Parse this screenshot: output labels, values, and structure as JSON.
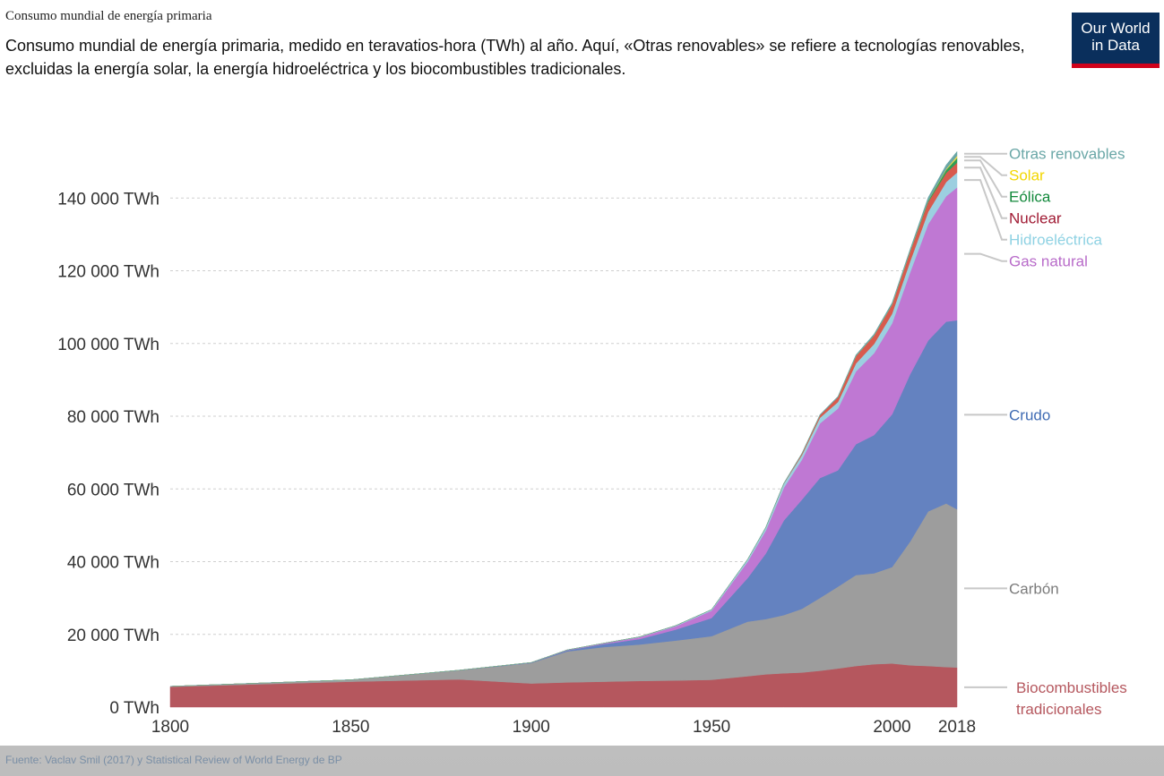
{
  "header": {
    "title": "Consumo mundial de energía primaria",
    "subtitle": "Consumo mundial de energía primaria, medido en teravatios-hora (TWh) al año. Aquí, «Otras renovables» se refiere a tecnologías renovables, excluidas la energía solar, la energía hidroeléctrica y los biocombustibles tradicionales."
  },
  "logo": {
    "line1": "Our World",
    "line2": "in Data"
  },
  "source": "Fuente: Vaclav Smil (2017) y Statistical Review of World Energy de BP",
  "chart_data": {
    "type": "area",
    "stacked": true,
    "x": [
      1800,
      1850,
      1880,
      1900,
      1910,
      1920,
      1930,
      1940,
      1950,
      1960,
      1965,
      1970,
      1975,
      1980,
      1985,
      1990,
      1995,
      2000,
      2005,
      2010,
      2015,
      2018
    ],
    "x_ticks": [
      1800,
      1850,
      1900,
      1950,
      2000,
      2018
    ],
    "xlim": [
      1800,
      2018
    ],
    "ylim": [
      0,
      160000
    ],
    "y_ticks": [
      0,
      20000,
      40000,
      60000,
      80000,
      100000,
      120000,
      140000
    ],
    "y_tick_labels": [
      "0 TWh",
      "20 000 TWh",
      "40 000 TWh",
      "60 000 TWh",
      "80 000 TWh",
      "100 000 TWh",
      "120 000 TWh",
      "140 000 TWh"
    ],
    "grid": true,
    "series": [
      {
        "name": "Biocombustibles tradicionales",
        "color": "#b5575e",
        "values": [
          5600,
          7000,
          7600,
          6500,
          6800,
          7000,
          7200,
          7300,
          7500,
          8500,
          9000,
          9300,
          9500,
          10000,
          10600,
          11300,
          11800,
          12000,
          11500,
          11300,
          11000,
          10900
        ]
      },
      {
        "name": "Carbón",
        "color": "#9d9d9d",
        "values": [
          100,
          500,
          2500,
          5600,
          8500,
          9500,
          10000,
          11000,
          12000,
          15000,
          15200,
          16000,
          17500,
          20000,
          22500,
          25000,
          25000,
          26500,
          34000,
          42500,
          45000,
          43500
        ]
      },
      {
        "name": "Crudo",
        "color": "#6482c0",
        "values": [
          0,
          0,
          50,
          100,
          300,
          800,
          1500,
          3000,
          5000,
          12000,
          18000,
          26000,
          30000,
          33000,
          32000,
          36000,
          38000,
          42000,
          46000,
          47000,
          50000,
          52000
        ]
      },
      {
        "name": "Gas natural",
        "color": "#bf78d3",
        "values": [
          0,
          0,
          0,
          50,
          100,
          200,
          500,
          900,
          2000,
          4500,
          6300,
          9000,
          11000,
          15000,
          17000,
          20000,
          22500,
          25000,
          28000,
          32000,
          34500,
          36500
        ]
      },
      {
        "name": "Hidroeléctrica",
        "color": "#9ccfe0",
        "values": [
          0,
          0,
          0,
          10,
          30,
          60,
          120,
          200,
          300,
          650,
          850,
          1100,
          1250,
          1550,
          1800,
          2200,
          2550,
          2650,
          3000,
          3400,
          3900,
          4100
        ]
      },
      {
        "name": "Nuclear",
        "color": "#d85a4d",
        "values": [
          0,
          0,
          0,
          0,
          0,
          0,
          0,
          0,
          0,
          0,
          0,
          100,
          400,
          700,
          1300,
          2000,
          2300,
          2550,
          2700,
          2700,
          2500,
          2700
        ]
      },
      {
        "name": "Eólica",
        "color": "#2f9e55",
        "values": [
          0,
          0,
          0,
          0,
          0,
          0,
          0,
          0,
          0,
          0,
          0,
          0,
          0,
          0,
          0,
          10,
          20,
          30,
          100,
          350,
          850,
          1300
        ]
      },
      {
        "name": "Solar",
        "color": "#f2d64b",
        "values": [
          0,
          0,
          0,
          0,
          0,
          0,
          0,
          0,
          0,
          0,
          0,
          0,
          0,
          0,
          0,
          0,
          0,
          5,
          10,
          30,
          250,
          600
        ]
      },
      {
        "name": "Otras renovables",
        "color": "#6aa7a7",
        "values": [
          0,
          0,
          0,
          0,
          0,
          0,
          0,
          10,
          20,
          50,
          70,
          100,
          120,
          180,
          250,
          350,
          400,
          450,
          550,
          850,
          1100,
          1200
        ]
      }
    ],
    "legend_labels": [
      {
        "series": "Otras renovables",
        "color": "#6aa7a7"
      },
      {
        "series": "Solar",
        "color": "#f2d600"
      },
      {
        "series": "Eólica",
        "color": "#11883a"
      },
      {
        "series": "Nuclear",
        "color": "#a01a33"
      },
      {
        "series": "Hidroeléctrica",
        "color": "#8fd2e3"
      },
      {
        "series": "Gas natural",
        "color": "#b86bc9"
      },
      {
        "series": "Crudo",
        "color": "#3f6bb3"
      },
      {
        "series": "Carbón",
        "color": "#7b7b7b"
      },
      {
        "series": "Biocombustibles tradicionales",
        "color": "#b5575e",
        "lines": [
          "Biocombustibles",
          "tradicionales"
        ]
      }
    ],
    "legend_placement": "right"
  }
}
